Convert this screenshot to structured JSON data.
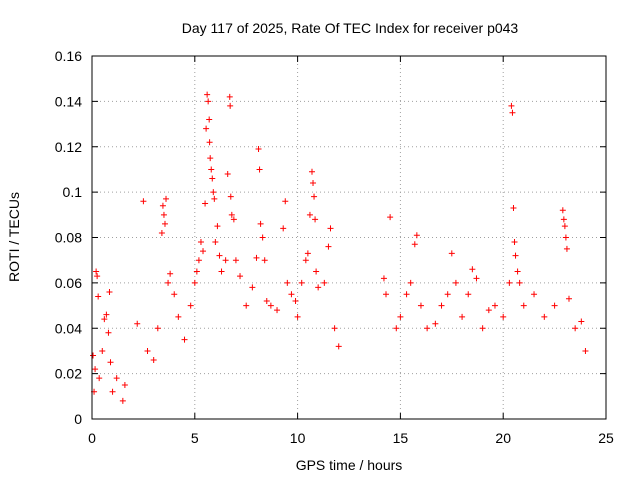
{
  "chart_data": {
    "type": "scatter",
    "title": "Day 117 of 2025, Rate Of TEC Index for receiver p043",
    "xlabel": "GPS time / hours",
    "ylabel": "ROTI / TECUs",
    "xlim": [
      0,
      25
    ],
    "ylim": [
      0,
      0.16
    ],
    "xticks": [
      "0",
      "5",
      "10",
      "15",
      "20",
      "25"
    ],
    "yticks": [
      "0",
      "0.02",
      "0.04",
      "0.06",
      "0.08",
      "0.1",
      "0.12",
      "0.14",
      "0.16"
    ],
    "grid": true,
    "legend": "none",
    "marker": "+",
    "color": "#ff0000",
    "series": [
      {
        "points": [
          [
            0.05,
            0.028
          ],
          [
            0.1,
            0.012
          ],
          [
            0.15,
            0.022
          ],
          [
            0.2,
            0.065
          ],
          [
            0.25,
            0.063
          ],
          [
            0.3,
            0.054
          ],
          [
            0.35,
            0.018
          ],
          [
            0.5,
            0.03
          ],
          [
            0.6,
            0.044
          ],
          [
            0.7,
            0.046
          ],
          [
            0.8,
            0.038
          ],
          [
            0.85,
            0.056
          ],
          [
            0.9,
            0.025
          ],
          [
            1.0,
            0.012
          ],
          [
            1.2,
            0.018
          ],
          [
            1.5,
            0.008
          ],
          [
            1.6,
            0.015
          ],
          [
            2.2,
            0.042
          ],
          [
            2.5,
            0.096
          ],
          [
            2.7,
            0.03
          ],
          [
            3.0,
            0.026
          ],
          [
            3.2,
            0.04
          ],
          [
            3.4,
            0.082
          ],
          [
            3.45,
            0.094
          ],
          [
            3.5,
            0.09
          ],
          [
            3.55,
            0.086
          ],
          [
            3.6,
            0.097
          ],
          [
            3.7,
            0.06
          ],
          [
            3.8,
            0.064
          ],
          [
            4.0,
            0.055
          ],
          [
            4.2,
            0.045
          ],
          [
            4.5,
            0.035
          ],
          [
            4.8,
            0.05
          ],
          [
            5.0,
            0.06
          ],
          [
            5.1,
            0.065
          ],
          [
            5.2,
            0.07
          ],
          [
            5.3,
            0.078
          ],
          [
            5.4,
            0.074
          ],
          [
            5.5,
            0.095
          ],
          [
            5.55,
            0.128
          ],
          [
            5.6,
            0.143
          ],
          [
            5.65,
            0.14
          ],
          [
            5.7,
            0.132
          ],
          [
            5.72,
            0.122
          ],
          [
            5.75,
            0.115
          ],
          [
            5.8,
            0.11
          ],
          [
            5.85,
            0.106
          ],
          [
            5.9,
            0.1
          ],
          [
            5.95,
            0.097
          ],
          [
            6.0,
            0.078
          ],
          [
            6.1,
            0.085
          ],
          [
            6.2,
            0.072
          ],
          [
            6.3,
            0.065
          ],
          [
            6.5,
            0.07
          ],
          [
            6.6,
            0.108
          ],
          [
            6.7,
            0.142
          ],
          [
            6.72,
            0.138
          ],
          [
            6.75,
            0.098
          ],
          [
            6.8,
            0.09
          ],
          [
            6.9,
            0.088
          ],
          [
            7.0,
            0.07
          ],
          [
            7.2,
            0.063
          ],
          [
            7.5,
            0.05
          ],
          [
            7.8,
            0.058
          ],
          [
            8.0,
            0.071
          ],
          [
            8.1,
            0.119
          ],
          [
            8.15,
            0.11
          ],
          [
            8.2,
            0.086
          ],
          [
            8.3,
            0.08
          ],
          [
            8.4,
            0.07
          ],
          [
            8.5,
            0.052
          ],
          [
            8.7,
            0.05
          ],
          [
            9.0,
            0.048
          ],
          [
            9.3,
            0.084
          ],
          [
            9.4,
            0.096
          ],
          [
            9.5,
            0.06
          ],
          [
            9.7,
            0.055
          ],
          [
            9.9,
            0.052
          ],
          [
            10.0,
            0.045
          ],
          [
            10.2,
            0.06
          ],
          [
            10.4,
            0.07
          ],
          [
            10.5,
            0.073
          ],
          [
            10.6,
            0.09
          ],
          [
            10.7,
            0.109
          ],
          [
            10.75,
            0.104
          ],
          [
            10.8,
            0.098
          ],
          [
            10.85,
            0.088
          ],
          [
            10.9,
            0.065
          ],
          [
            11.0,
            0.058
          ],
          [
            11.3,
            0.06
          ],
          [
            11.5,
            0.076
          ],
          [
            11.6,
            0.084
          ],
          [
            11.8,
            0.04
          ],
          [
            12.0,
            0.032
          ],
          [
            14.2,
            0.062
          ],
          [
            14.3,
            0.055
          ],
          [
            14.5,
            0.089
          ],
          [
            14.8,
            0.04
          ],
          [
            15.0,
            0.045
          ],
          [
            15.3,
            0.055
          ],
          [
            15.5,
            0.06
          ],
          [
            15.7,
            0.077
          ],
          [
            15.8,
            0.081
          ],
          [
            16.0,
            0.05
          ],
          [
            16.3,
            0.04
          ],
          [
            16.7,
            0.042
          ],
          [
            17.0,
            0.05
          ],
          [
            17.3,
            0.055
          ],
          [
            17.5,
            0.073
          ],
          [
            17.7,
            0.06
          ],
          [
            18.0,
            0.045
          ],
          [
            18.3,
            0.055
          ],
          [
            18.5,
            0.066
          ],
          [
            18.7,
            0.062
          ],
          [
            19.0,
            0.04
          ],
          [
            19.3,
            0.048
          ],
          [
            19.6,
            0.05
          ],
          [
            20.0,
            0.045
          ],
          [
            20.3,
            0.06
          ],
          [
            20.4,
            0.138
          ],
          [
            20.45,
            0.135
          ],
          [
            20.5,
            0.093
          ],
          [
            20.55,
            0.078
          ],
          [
            20.6,
            0.072
          ],
          [
            20.7,
            0.065
          ],
          [
            20.8,
            0.06
          ],
          [
            21.0,
            0.05
          ],
          [
            21.5,
            0.055
          ],
          [
            22.0,
            0.045
          ],
          [
            22.5,
            0.05
          ],
          [
            22.9,
            0.092
          ],
          [
            22.95,
            0.088
          ],
          [
            23.0,
            0.085
          ],
          [
            23.05,
            0.08
          ],
          [
            23.1,
            0.075
          ],
          [
            23.2,
            0.053
          ],
          [
            23.5,
            0.04
          ],
          [
            23.8,
            0.043
          ],
          [
            24.0,
            0.03
          ]
        ]
      }
    ]
  }
}
